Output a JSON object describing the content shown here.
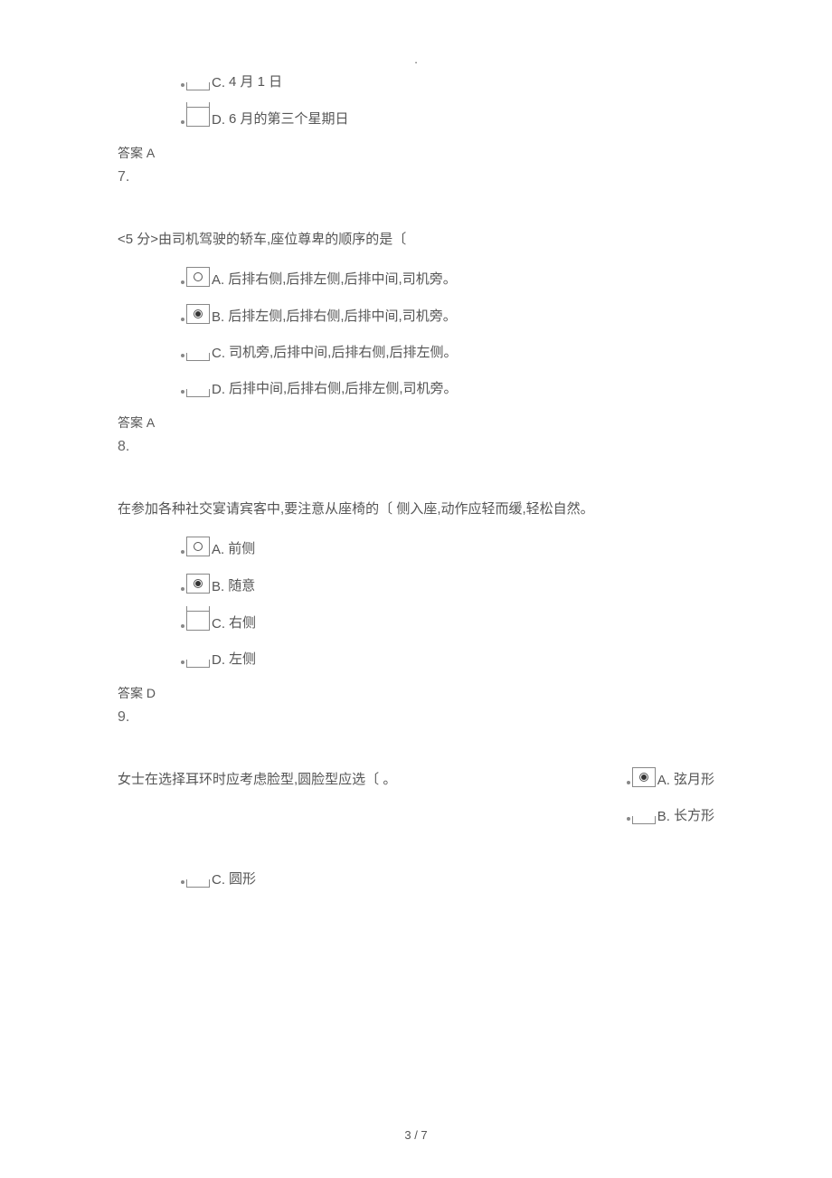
{
  "page_marker": ".",
  "q6": {
    "opt_c": {
      "letter": "C.",
      "text": "4 月 1 日"
    },
    "opt_d": {
      "letter": "D.",
      "text": "6 月的第三个星期日"
    },
    "answer": "答案 A"
  },
  "q7": {
    "num": "7.",
    "text": "<5 分>由司机驾驶的轿车,座位尊卑的顺序的是〔",
    "opt_a": {
      "letter": "A.",
      "text": "后排右侧,后排左侧,后排中间,司机旁。"
    },
    "opt_b": {
      "letter": "B.",
      "text": "后排左侧,后排右侧,后排中间,司机旁。"
    },
    "opt_c": {
      "letter": "C.",
      "text": "司机旁,后排中间,后排右侧,后排左侧。"
    },
    "opt_d": {
      "letter": "D.",
      "text": "后排中间,后排右侧,后排左侧,司机旁。"
    },
    "answer": "答案 A"
  },
  "q8": {
    "num": "8.",
    "text": "在参加各种社交宴请宾客中,要注意从座椅的〔 侧入座,动作应轻而缓,轻松自然。",
    "opt_a": {
      "letter": "A.",
      "text": "前侧"
    },
    "opt_b": {
      "letter": "B.",
      "text": "随意"
    },
    "opt_c": {
      "letter": "C.",
      "text": "右侧"
    },
    "opt_d": {
      "letter": "D.",
      "text": "左侧"
    },
    "answer": "答案 D"
  },
  "q9": {
    "num": "9.",
    "text": "女士在选择耳环时应考虑脸型,圆脸型应选〔 。",
    "opt_a": {
      "letter": "A.",
      "text": "弦月形"
    },
    "opt_b": {
      "letter": "B.",
      "text": "长方形"
    },
    "opt_c": {
      "letter": "C.",
      "text": "圆形"
    }
  },
  "footer": "3 / 7"
}
